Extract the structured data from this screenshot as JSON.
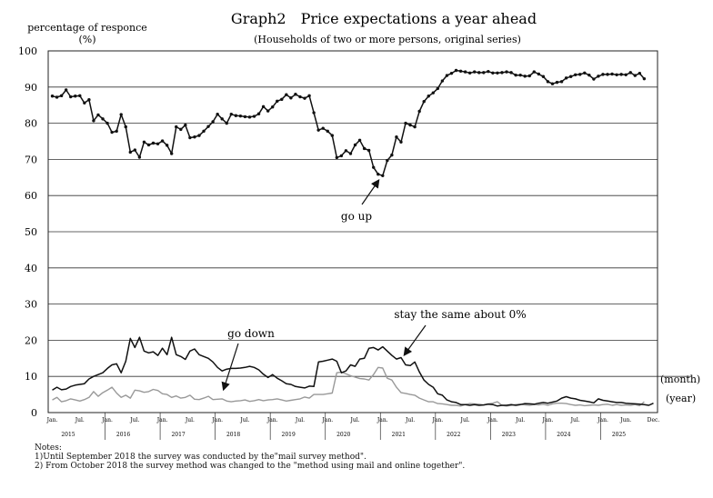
{
  "chart_data": {
    "type": "line",
    "title": "Graph2　Price expectations a year ahead",
    "subtitle": "(Households of two or more persons, original series)",
    "ylabel": "percentage of responce",
    "ylabel_unit": "(%)",
    "ylim": [
      0,
      100
    ],
    "yticks": [
      0,
      10,
      20,
      30,
      40,
      50,
      60,
      70,
      80,
      90,
      100
    ],
    "xlabel_month": "(month)",
    "xlabel_year": "(year)",
    "month_labels": [
      "Jan.",
      "Jul."
    ],
    "end_month_labels": [
      "Jun.",
      "Dec."
    ],
    "years": [
      "2015",
      "2016",
      "2017",
      "2018",
      "2019",
      "2020",
      "2021",
      "2022",
      "2023",
      "2024",
      "2025"
    ],
    "x_start": "2015-01",
    "x_end": "2025-12",
    "series": [
      {
        "name": "go up",
        "color": "#111111",
        "marker": "dot",
        "values": [
          87.5,
          87.2,
          87.6,
          89.2,
          87.3,
          87.5,
          87.6,
          85.6,
          86.5,
          80.7,
          82.3,
          81.2,
          80.0,
          77.5,
          77.8,
          82.4,
          79.0,
          72.0,
          72.6,
          70.6,
          74.8,
          74.0,
          74.5,
          74.3,
          75.1,
          73.9,
          71.6,
          79.0,
          78.3,
          79.5,
          76.0,
          76.2,
          76.6,
          77.8,
          79.1,
          80.4,
          82.5,
          81.2,
          80.0,
          82.5,
          82.1,
          82.0,
          81.8,
          81.7,
          81.9,
          82.6,
          84.6,
          83.4,
          84.5,
          86.1,
          86.6,
          87.9,
          87.0,
          88.0,
          87.3,
          86.9,
          87.6,
          82.9,
          78.1,
          78.6,
          77.8,
          76.6,
          70.5,
          71.0,
          72.4,
          71.6,
          74.0,
          75.3,
          73.0,
          72.5,
          67.8,
          65.9,
          65.5,
          69.7,
          71.2,
          76.2,
          74.8,
          80.0,
          79.5,
          79.0,
          83.3,
          86.0,
          87.5,
          88.4,
          89.6,
          91.7,
          93.2,
          93.8,
          94.6,
          94.4,
          94.2,
          93.9,
          94.2,
          94.0,
          94.0,
          94.3,
          93.9,
          93.9,
          94.0,
          94.2,
          94.0,
          93.3,
          93.3,
          93.0,
          93.1,
          94.2,
          93.6,
          92.9,
          91.5,
          90.9,
          91.3,
          91.5,
          92.5,
          92.9,
          93.4,
          93.5,
          93.9,
          93.3,
          92.2,
          93.0,
          93.5,
          93.5,
          93.6,
          93.4,
          93.5,
          93.4,
          94.0,
          93.2,
          93.8,
          92.3
        ]
      },
      {
        "name": "stay the same about 0%",
        "color": "#999999",
        "marker": "none",
        "values": [
          3.5,
          4.2,
          3.0,
          3.3,
          3.8,
          3.5,
          3.2,
          3.6,
          4.2,
          5.8,
          4.5,
          5.5,
          6.2,
          7.0,
          5.4,
          4.2,
          4.8,
          4.0,
          6.2,
          6.0,
          5.6,
          5.8,
          6.4,
          6.1,
          5.2,
          5.0,
          4.2,
          4.6,
          4.0,
          4.2,
          4.8,
          3.7,
          3.6,
          4.0,
          4.5,
          3.6,
          3.7,
          3.8,
          3.2,
          3.0,
          3.2,
          3.3,
          3.5,
          3.1,
          3.3,
          3.6,
          3.3,
          3.5,
          3.6,
          3.8,
          3.5,
          3.2,
          3.4,
          3.6,
          3.8,
          4.3,
          4.0,
          5.0,
          5.0,
          5.0,
          5.2,
          5.4,
          11.0,
          11.2,
          10.7,
          10.2,
          9.8,
          9.4,
          9.3,
          9.0,
          10.5,
          12.5,
          12.3,
          9.5,
          9.0,
          7.0,
          5.5,
          5.3,
          5.0,
          4.8,
          4.0,
          3.5,
          3.0,
          3.0,
          2.5,
          2.4,
          2.2,
          2.0,
          2.0,
          1.8,
          2.2,
          2.5,
          2.4,
          2.3,
          2.1,
          2.4,
          2.6,
          3.0,
          2.0,
          1.8,
          2.0,
          2.2,
          2.3,
          2.1,
          2.0,
          2.2,
          2.1,
          2.3,
          2.0,
          2.4,
          2.6,
          2.6,
          2.5,
          2.2,
          2.0,
          2.1,
          1.9,
          2.0,
          2.1,
          2.0,
          2.2,
          2.3,
          2.0,
          2.2,
          2.0,
          2.1,
          2.0,
          2.2,
          1.9,
          3.0
        ]
      },
      {
        "name": "go down",
        "color": "#111111",
        "marker": "none",
        "values": [
          6.2,
          7.0,
          6.3,
          6.5,
          7.2,
          7.6,
          7.8,
          8.0,
          9.3,
          10.0,
          10.5,
          11.0,
          12.2,
          13.2,
          13.5,
          11.0,
          14.2,
          20.5,
          18.0,
          20.8,
          17.0,
          16.5,
          16.8,
          15.8,
          17.8,
          16.0,
          20.8,
          16.0,
          15.5,
          14.7,
          17.0,
          17.6,
          16.0,
          15.5,
          15.0,
          14.0,
          12.5,
          11.5,
          12.0,
          12.2,
          12.2,
          12.3,
          12.5,
          12.8,
          12.5,
          11.8,
          10.6,
          9.7,
          10.5,
          9.5,
          8.8,
          8.0,
          7.8,
          7.2,
          7.0,
          6.8,
          7.3,
          7.2,
          14.0,
          14.2,
          14.5,
          14.8,
          14.2,
          11.0,
          11.5,
          13.2,
          12.8,
          14.8,
          15.0,
          17.8,
          18.0,
          17.3,
          18.2,
          17.0,
          15.8,
          14.8,
          15.2,
          13.2,
          13.0,
          14.0,
          11.2,
          9.0,
          7.8,
          7.0,
          5.2,
          4.8,
          3.5,
          3.0,
          2.8,
          2.2,
          2.2,
          2.0,
          2.2,
          2.0,
          2.1,
          2.3,
          2.2,
          1.8,
          2.0,
          2.0,
          2.2,
          2.0,
          2.2,
          2.5,
          2.4,
          2.3,
          2.6,
          2.8,
          2.6,
          2.9,
          3.2,
          4.0,
          4.4,
          4.0,
          3.8,
          3.4,
          3.2,
          3.0,
          2.7,
          3.8,
          3.4,
          3.2,
          3.0,
          2.8,
          2.8,
          2.6,
          2.5,
          2.4,
          2.3,
          2.2,
          2.0,
          2.6
        ]
      }
    ],
    "annotations": [
      {
        "text": "go up",
        "series": "go up"
      },
      {
        "text": "go down",
        "series": "go down"
      },
      {
        "text": "stay the same about 0%",
        "series": "stay the same about 0%"
      }
    ]
  },
  "notes": {
    "heading": "Notes:",
    "line1": "1)Until September 2018 the survey was conducted by the\"mail survey method\".",
    "line2": "2) From October 2018 the survey method was changed to the \"method using mail and online together\"."
  }
}
